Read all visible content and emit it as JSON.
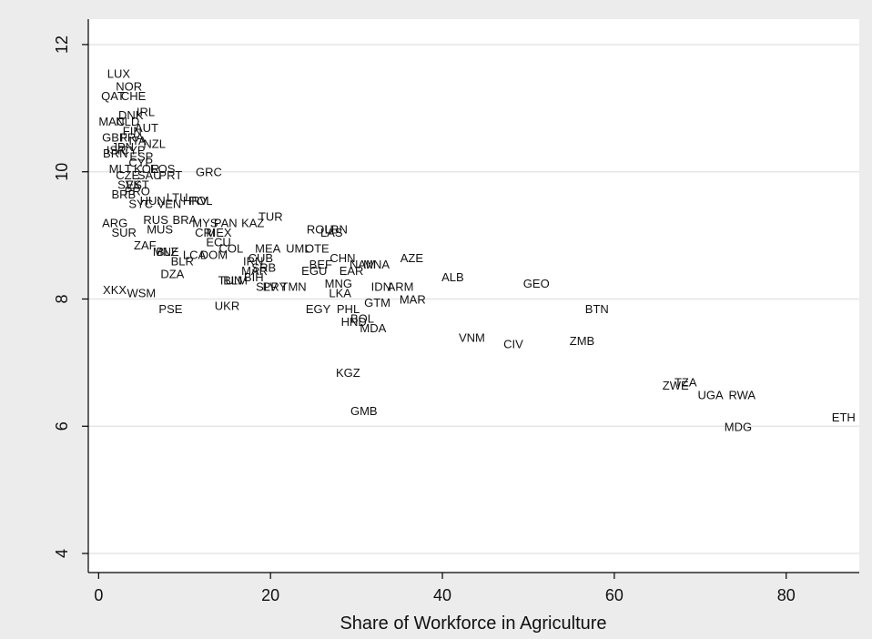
{
  "chart_data": {
    "type": "scatter",
    "title": "",
    "xlabel": "Share of Workforce in Agriculture",
    "ylabel": "",
    "xlim": [
      -1.2,
      88.5
    ],
    "ylim": [
      3.7,
      12.4
    ],
    "xticks": [
      0,
      20,
      40,
      60,
      80
    ],
    "yticks": [
      4,
      6,
      8,
      10,
      12
    ],
    "grid": "horizontal",
    "legend": "none",
    "colors": {
      "background": "#ececec",
      "plot_area": "#ffffff",
      "grid": "#e6e6e6",
      "axis": "#000000",
      "text": "#111111"
    },
    "points": [
      {
        "label": "LUX",
        "x": 1.0,
        "y": 11.55
      },
      {
        "label": "NOR",
        "x": 2.0,
        "y": 11.35
      },
      {
        "label": "QAT",
        "x": 0.3,
        "y": 11.2
      },
      {
        "label": "CHE",
        "x": 2.6,
        "y": 11.2
      },
      {
        "label": "IRL",
        "x": 4.4,
        "y": 10.95
      },
      {
        "label": "DNK",
        "x": 2.3,
        "y": 10.9
      },
      {
        "label": "MAC",
        "x": 0.0,
        "y": 10.8
      },
      {
        "label": "NLD",
        "x": 2.0,
        "y": 10.8
      },
      {
        "label": "AUT",
        "x": 4.2,
        "y": 10.7
      },
      {
        "label": "FIN",
        "x": 2.8,
        "y": 10.65
      },
      {
        "label": "GBR",
        "x": 0.4,
        "y": 10.55
      },
      {
        "label": "FRA",
        "x": 2.5,
        "y": 10.55
      },
      {
        "label": "ITA",
        "x": 3.5,
        "y": 10.5
      },
      {
        "label": "NZL",
        "x": 5.2,
        "y": 10.45
      },
      {
        "label": "JPN",
        "x": 1.5,
        "y": 10.4
      },
      {
        "label": "ISR",
        "x": 0.9,
        "y": 10.35
      },
      {
        "label": "CYP",
        "x": 2.6,
        "y": 10.35
      },
      {
        "label": "BRN",
        "x": 0.5,
        "y": 10.3
      },
      {
        "label": "ESP",
        "x": 3.6,
        "y": 10.25
      },
      {
        "label": "CYP",
        "x": 3.5,
        "y": 10.15
      },
      {
        "label": "MLT",
        "x": 1.2,
        "y": 10.05
      },
      {
        "label": "KOR",
        "x": 4.1,
        "y": 10.05
      },
      {
        "label": "EOS",
        "x": 6.0,
        "y": 10.05
      },
      {
        "label": "CZE",
        "x": 2.0,
        "y": 9.95
      },
      {
        "label": "SAU",
        "x": 4.5,
        "y": 9.95
      },
      {
        "label": "PRT",
        "x": 7.0,
        "y": 9.95
      },
      {
        "label": "GRC",
        "x": 11.3,
        "y": 10.0
      },
      {
        "label": "SVK",
        "x": 2.2,
        "y": 9.8
      },
      {
        "label": "EST",
        "x": 3.2,
        "y": 9.8
      },
      {
        "label": "BRB",
        "x": 1.5,
        "y": 9.65
      },
      {
        "label": "PRO",
        "x": 3.0,
        "y": 9.7
      },
      {
        "label": "HUN",
        "x": 4.8,
        "y": 9.55
      },
      {
        "label": "LTU",
        "x": 7.9,
        "y": 9.6
      },
      {
        "label": "HRV",
        "x": 9.8,
        "y": 9.55
      },
      {
        "label": "POL",
        "x": 10.5,
        "y": 9.55
      },
      {
        "label": "SYC",
        "x": 3.5,
        "y": 9.5
      },
      {
        "label": "VEN",
        "x": 6.8,
        "y": 9.5
      },
      {
        "label": "ARG",
        "x": 0.4,
        "y": 9.2
      },
      {
        "label": "RUS",
        "x": 5.2,
        "y": 9.25
      },
      {
        "label": "BRA",
        "x": 8.6,
        "y": 9.25
      },
      {
        "label": "MYS",
        "x": 10.9,
        "y": 9.2
      },
      {
        "label": "PAN",
        "x": 13.4,
        "y": 9.2
      },
      {
        "label": "KAZ",
        "x": 16.6,
        "y": 9.2
      },
      {
        "label": "TUR",
        "x": 18.6,
        "y": 9.3
      },
      {
        "label": "SUR",
        "x": 1.5,
        "y": 9.05
      },
      {
        "label": "MUS",
        "x": 5.6,
        "y": 9.1
      },
      {
        "label": "CRI",
        "x": 11.2,
        "y": 9.05
      },
      {
        "label": "MEX",
        "x": 12.5,
        "y": 9.05
      },
      {
        "label": "ROU",
        "x": 24.2,
        "y": 9.1
      },
      {
        "label": "LBN",
        "x": 26.3,
        "y": 9.1
      },
      {
        "label": "LAS",
        "x": 25.8,
        "y": 9.05
      },
      {
        "label": "ZAF",
        "x": 4.1,
        "y": 8.85
      },
      {
        "label": "ECU",
        "x": 12.5,
        "y": 8.9
      },
      {
        "label": "COL",
        "x": 14.0,
        "y": 8.8
      },
      {
        "label": "MEA",
        "x": 18.2,
        "y": 8.8
      },
      {
        "label": "UML",
        "x": 21.8,
        "y": 8.8
      },
      {
        "label": "OTE",
        "x": 24.0,
        "y": 8.8
      },
      {
        "label": "MNE",
        "x": 6.3,
        "y": 8.75
      },
      {
        "label": "BLZ",
        "x": 6.7,
        "y": 8.75
      },
      {
        "label": "LCA",
        "x": 9.8,
        "y": 8.7
      },
      {
        "label": "DOM",
        "x": 11.8,
        "y": 8.7
      },
      {
        "label": "CUB",
        "x": 17.4,
        "y": 8.65
      },
      {
        "label": "CHN",
        "x": 26.9,
        "y": 8.65
      },
      {
        "label": "BLR",
        "x": 8.4,
        "y": 8.6
      },
      {
        "label": "IRN",
        "x": 16.8,
        "y": 8.6
      },
      {
        "label": "BEF",
        "x": 24.5,
        "y": 8.55
      },
      {
        "label": "NAM",
        "x": 29.2,
        "y": 8.55
      },
      {
        "label": "MNA",
        "x": 30.8,
        "y": 8.55
      },
      {
        "label": "AZE",
        "x": 35.1,
        "y": 8.65
      },
      {
        "label": "SRB",
        "x": 17.8,
        "y": 8.5
      },
      {
        "label": "EGU",
        "x": 23.6,
        "y": 8.45
      },
      {
        "label": "EAR",
        "x": 28.0,
        "y": 8.45
      },
      {
        "label": "DZA",
        "x": 7.2,
        "y": 8.4
      },
      {
        "label": "MAR",
        "x": 16.6,
        "y": 8.45
      },
      {
        "label": "BIH",
        "x": 16.9,
        "y": 8.35
      },
      {
        "label": "ALB",
        "x": 39.9,
        "y": 8.35
      },
      {
        "label": "TUN",
        "x": 13.9,
        "y": 8.3
      },
      {
        "label": "BLM",
        "x": 14.5,
        "y": 8.3
      },
      {
        "label": "MNG",
        "x": 26.3,
        "y": 8.25
      },
      {
        "label": "GEO",
        "x": 49.4,
        "y": 8.25
      },
      {
        "label": "SLV",
        "x": 18.3,
        "y": 8.2
      },
      {
        "label": "PRY",
        "x": 19.1,
        "y": 8.2
      },
      {
        "label": "TMN",
        "x": 21.2,
        "y": 8.2
      },
      {
        "label": "IDN",
        "x": 31.7,
        "y": 8.2
      },
      {
        "label": "ARM",
        "x": 33.6,
        "y": 8.2
      },
      {
        "label": "XKX",
        "x": 0.5,
        "y": 8.15
      },
      {
        "label": "WSM",
        "x": 3.3,
        "y": 8.1
      },
      {
        "label": "LKA",
        "x": 26.8,
        "y": 8.1
      },
      {
        "label": "GTM",
        "x": 30.9,
        "y": 7.95
      },
      {
        "label": "MAR",
        "x": 35.0,
        "y": 8.0
      },
      {
        "label": "PSE",
        "x": 7.0,
        "y": 7.85
      },
      {
        "label": "UKR",
        "x": 13.5,
        "y": 7.9
      },
      {
        "label": "EGY",
        "x": 24.1,
        "y": 7.85
      },
      {
        "label": "PHL",
        "x": 27.7,
        "y": 7.85
      },
      {
        "label": "BTN",
        "x": 56.6,
        "y": 7.85
      },
      {
        "label": "BOL",
        "x": 29.3,
        "y": 7.7
      },
      {
        "label": "HND",
        "x": 28.2,
        "y": 7.65
      },
      {
        "label": "MDA",
        "x": 30.4,
        "y": 7.55
      },
      {
        "label": "VNM",
        "x": 41.9,
        "y": 7.4
      },
      {
        "label": "CIV",
        "x": 47.1,
        "y": 7.3
      },
      {
        "label": "ZMB",
        "x": 54.8,
        "y": 7.35
      },
      {
        "label": "KGZ",
        "x": 27.6,
        "y": 6.85
      },
      {
        "label": "ZWE",
        "x": 65.6,
        "y": 6.65
      },
      {
        "label": "TZA",
        "x": 67.0,
        "y": 6.7
      },
      {
        "label": "UGA",
        "x": 69.7,
        "y": 6.5
      },
      {
        "label": "RWA",
        "x": 73.3,
        "y": 6.5
      },
      {
        "label": "GMB",
        "x": 29.3,
        "y": 6.25
      },
      {
        "label": "ETH",
        "x": 85.3,
        "y": 6.15
      },
      {
        "label": "MDG",
        "x": 72.8,
        "y": 6.0
      }
    ]
  }
}
